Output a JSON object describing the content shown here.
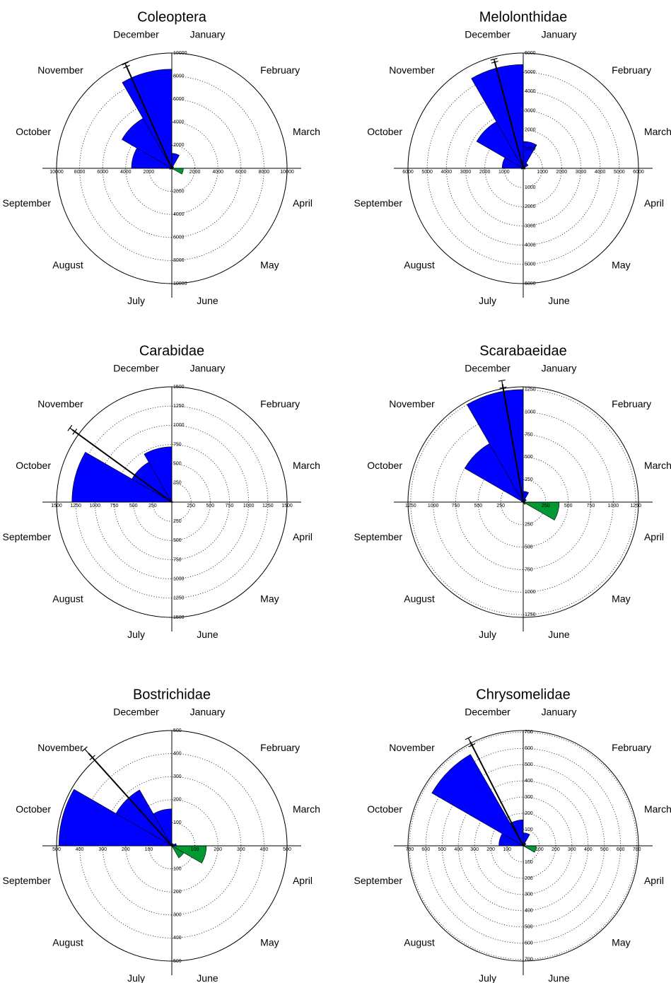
{
  "chart_data": [
    {
      "type": "rose",
      "title": "Coleoptera",
      "categories": [
        "January",
        "February",
        "March",
        "April",
        "May",
        "June",
        "July",
        "August",
        "September",
        "October",
        "November",
        "December"
      ],
      "values": [
        1300,
        200,
        100,
        1000,
        100,
        0,
        0,
        0,
        200,
        3500,
        5000,
        8600
      ],
      "colors": [
        "#0000ff",
        "#0000ff",
        "#0000ff",
        "#009933",
        "#009933",
        "#009933",
        "#0000ff",
        "#0000ff",
        "#0000ff",
        "#0000ff",
        "#0000ff",
        "#0000ff"
      ],
      "rlim": [
        0,
        10000
      ],
      "rticks": [
        2000,
        4000,
        6000,
        8000,
        10000
      ],
      "mean_vector": {
        "angle": 336,
        "length": 9800,
        "error": 150
      }
    },
    {
      "type": "rose",
      "title": "Melolonthidae",
      "categories": [
        "January",
        "February",
        "March",
        "April",
        "May",
        "June",
        "July",
        "August",
        "September",
        "October",
        "November",
        "December"
      ],
      "values": [
        1400,
        300,
        100,
        100,
        0,
        0,
        0,
        0,
        100,
        1100,
        2800,
        5400
      ],
      "colors": [
        "#0000ff",
        "#0000ff",
        "#0000ff",
        "#009933",
        "#009933",
        "#009933",
        "#0000ff",
        "#0000ff",
        "#0000ff",
        "#0000ff",
        "#0000ff",
        "#0000ff"
      ],
      "rlim": [
        0,
        6000
      ],
      "rticks": [
        1000,
        2000,
        3000,
        4000,
        5000,
        6000
      ],
      "mean_vector": {
        "angle": 345,
        "length": 5800,
        "error": 80
      }
    },
    {
      "type": "rose",
      "title": "Carabidae",
      "categories": [
        "January",
        "February",
        "March",
        "April",
        "May",
        "June",
        "July",
        "August",
        "September",
        "October",
        "November",
        "December"
      ],
      "values": [
        10,
        10,
        10,
        10,
        0,
        0,
        0,
        0,
        0,
        1300,
        600,
        720
      ],
      "colors": [
        "#0000ff",
        "#0000ff",
        "#0000ff",
        "#009933",
        "#009933",
        "#009933",
        "#0000ff",
        "#0000ff",
        "#0000ff",
        "#0000ff",
        "#0000ff",
        "#0000ff"
      ],
      "rlim": [
        0,
        1500
      ],
      "rticks": [
        250,
        500,
        750,
        1000,
        1250,
        1500
      ],
      "mean_vector": {
        "angle": 306,
        "length": 1600,
        "error": 40
      }
    },
    {
      "type": "rose",
      "title": "Scarabaeidae",
      "categories": [
        "January",
        "February",
        "March",
        "April",
        "May",
        "June",
        "July",
        "August",
        "September",
        "October",
        "November",
        "December"
      ],
      "values": [
        120,
        40,
        20,
        400,
        30,
        0,
        0,
        0,
        0,
        20,
        750,
        1250
      ],
      "colors": [
        "#0000ff",
        "#0000ff",
        "#0000ff",
        "#009933",
        "#009933",
        "#009933",
        "#0000ff",
        "#0000ff",
        "#0000ff",
        "#0000ff",
        "#0000ff",
        "#0000ff"
      ],
      "rlim": [
        0,
        1280
      ],
      "rticks": [
        250,
        500,
        750,
        1000,
        1250
      ],
      "mean_vector": {
        "angle": 350,
        "length": 1330,
        "error": 40
      }
    },
    {
      "type": "rose",
      "title": "Bostrichidae",
      "categories": [
        "January",
        "February",
        "March",
        "April",
        "May",
        "June",
        "July",
        "August",
        "September",
        "October",
        "November",
        "December"
      ],
      "values": [
        10,
        10,
        20,
        150,
        60,
        0,
        0,
        0,
        0,
        490,
        280,
        160
      ],
      "colors": [
        "#0000ff",
        "#0000ff",
        "#0000ff",
        "#009933",
        "#009933",
        "#009933",
        "#0000ff",
        "#0000ff",
        "#0000ff",
        "#0000ff",
        "#0000ff",
        "#0000ff"
      ],
      "rlim": [
        0,
        500
      ],
      "rticks": [
        100,
        200,
        300,
        400,
        500
      ],
      "mean_vector": {
        "angle": 318,
        "length": 540,
        "error": 25
      }
    },
    {
      "type": "rose",
      "title": "Chrysomelidae",
      "categories": [
        "January",
        "February",
        "March",
        "April",
        "May",
        "June",
        "July",
        "August",
        "September",
        "October",
        "November",
        "December"
      ],
      "values": [
        80,
        20,
        10,
        80,
        0,
        0,
        0,
        0,
        0,
        150,
        650,
        160
      ],
      "colors": [
        "#0000ff",
        "#0000ff",
        "#0000ff",
        "#009933",
        "#009933",
        "#009933",
        "#0000ff",
        "#0000ff",
        "#0000ff",
        "#0000ff",
        "#0000ff",
        "#0000ff"
      ],
      "rlim": [
        0,
        710
      ],
      "rticks": [
        100,
        200,
        300,
        400,
        500,
        600,
        700
      ],
      "mean_vector": {
        "angle": 333,
        "length": 720,
        "error": 25
      }
    }
  ]
}
